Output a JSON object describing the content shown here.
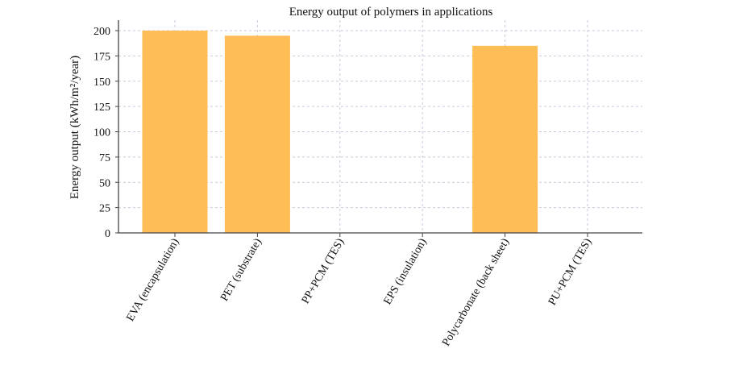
{
  "chart_data": {
    "type": "bar",
    "title": "Energy output of polymers in applications",
    "xlabel": "",
    "ylabel": "Energy output (kWh/m²/year)",
    "categories": [
      "EVA (encapsulation)",
      "PET (substrate)",
      "PP+PCM (TES)",
      "EPS (insulation)",
      "Polycarbonate (back sheet)",
      "PU+PCM (TES)"
    ],
    "values": [
      200,
      195,
      0,
      0,
      185,
      0
    ],
    "ylim": [
      0,
      210
    ],
    "yticks": [
      0,
      25,
      50,
      75,
      100,
      125,
      150,
      175,
      200
    ],
    "bar_color": "#ffbd55",
    "grid": true,
    "legend": "none"
  }
}
